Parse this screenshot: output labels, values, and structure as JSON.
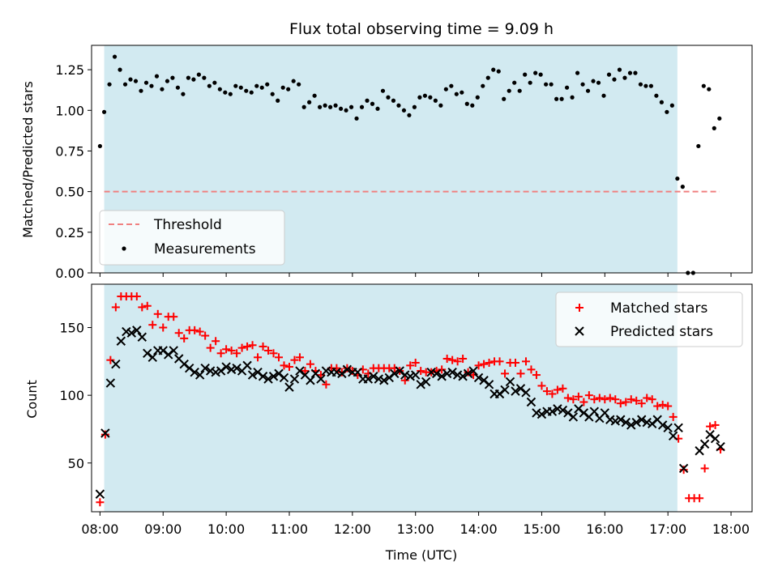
{
  "title": "Flux total observing time = 9.09 h",
  "colors": {
    "shade": "#add8e6",
    "threshold": "#f08080",
    "matched": "#ff0000",
    "predicted": "#000000",
    "measurements": "#000000"
  },
  "chart_data": [
    {
      "type": "scatter",
      "ylabel": "Matched/Predicted stars",
      "xlabel": "",
      "xlim": [
        "07:52",
        "18:20"
      ],
      "ylim": [
        0,
        1.4
      ],
      "yticks": [
        "0.00",
        "0.25",
        "0.50",
        "0.75",
        "1.00",
        "1.25"
      ],
      "shaded_interval": [
        "08:04",
        "17:09"
      ],
      "legend": {
        "location": "lower-left",
        "entries": [
          "Threshold",
          "Measurements"
        ]
      },
      "threshold": {
        "name": "Threshold",
        "y": 0.5,
        "x_range": [
          "08:04",
          "17:49"
        ]
      },
      "series": [
        {
          "name": "Measurements",
          "x": [
            "08:00",
            "08:04",
            "08:09",
            "08:14",
            "08:19",
            "08:24",
            "08:29",
            "08:34",
            "08:39",
            "08:44",
            "08:49",
            "08:54",
            "08:59",
            "09:04",
            "09:09",
            "09:14",
            "09:19",
            "09:24",
            "09:29",
            "09:34",
            "09:39",
            "09:44",
            "09:49",
            "09:54",
            "09:59",
            "10:04",
            "10:09",
            "10:14",
            "10:19",
            "10:24",
            "10:29",
            "10:34",
            "10:39",
            "10:44",
            "10:49",
            "10:54",
            "10:59",
            "11:04",
            "11:09",
            "11:14",
            "11:19",
            "11:24",
            "11:29",
            "11:34",
            "11:39",
            "11:44",
            "11:49",
            "11:54",
            "11:59",
            "12:04",
            "12:09",
            "12:14",
            "12:19",
            "12:24",
            "12:29",
            "12:34",
            "12:39",
            "12:44",
            "12:49",
            "12:54",
            "12:59",
            "13:04",
            "13:09",
            "13:14",
            "13:19",
            "13:24",
            "13:29",
            "13:34",
            "13:39",
            "13:44",
            "13:49",
            "13:54",
            "13:59",
            "14:04",
            "14:09",
            "14:14",
            "14:19",
            "14:24",
            "14:29",
            "14:34",
            "14:39",
            "14:44",
            "14:49",
            "14:54",
            "14:59",
            "15:04",
            "15:09",
            "15:14",
            "15:19",
            "15:24",
            "15:29",
            "15:34",
            "15:39",
            "15:44",
            "15:49",
            "15:54",
            "15:59",
            "16:04",
            "16:09",
            "16:14",
            "16:19",
            "16:24",
            "16:29",
            "16:34",
            "16:39",
            "16:44",
            "16:49",
            "16:54",
            "16:59",
            "17:04",
            "17:09",
            "17:14",
            "17:19",
            "17:24",
            "17:29",
            "17:34",
            "17:39",
            "17:44",
            "17:49"
          ],
          "y": [
            0.78,
            0.99,
            1.16,
            1.33,
            1.25,
            1.16,
            1.19,
            1.18,
            1.12,
            1.17,
            1.15,
            1.21,
            1.13,
            1.18,
            1.2,
            1.14,
            1.1,
            1.2,
            1.19,
            1.22,
            1.2,
            1.15,
            1.17,
            1.13,
            1.11,
            1.1,
            1.15,
            1.14,
            1.12,
            1.11,
            1.15,
            1.14,
            1.16,
            1.1,
            1.06,
            1.14,
            1.13,
            1.18,
            1.16,
            1.02,
            1.05,
            1.09,
            1.02,
            1.03,
            1.02,
            1.03,
            1.01,
            1.0,
            1.02,
            0.95,
            1.02,
            1.06,
            1.04,
            1.01,
            1.12,
            1.08,
            1.06,
            1.03,
            1.0,
            0.97,
            1.02,
            1.08,
            1.09,
            1.08,
            1.06,
            1.03,
            1.13,
            1.15,
            1.1,
            1.11,
            1.04,
            1.03,
            1.08,
            1.15,
            1.2,
            1.25,
            1.24,
            1.07,
            1.12,
            1.17,
            1.12,
            1.22,
            1.17,
            1.23,
            1.22,
            1.16,
            1.16,
            1.07,
            1.07,
            1.14,
            1.08,
            1.23,
            1.16,
            1.12,
            1.18,
            1.17,
            1.09,
            1.22,
            1.19,
            1.25,
            1.2,
            1.23,
            1.23,
            1.16,
            1.15,
            1.15,
            1.09,
            1.05,
            0.99,
            1.03,
            0.58,
            0.53,
            0.0,
            0.0,
            0.78,
            1.15,
            1.13,
            0.89,
            0.95
          ]
        }
      ]
    },
    {
      "type": "scatter",
      "xlabel": "Time (UTC)",
      "ylabel": "Count",
      "xlim": [
        "07:52",
        "18:20"
      ],
      "ylim": [
        14,
        182
      ],
      "yticks": [
        "50",
        "100",
        "150"
      ],
      "xticks": [
        "08:00",
        "09:00",
        "10:00",
        "11:00",
        "12:00",
        "13:00",
        "14:00",
        "15:00",
        "16:00",
        "17:00",
        "18:00"
      ],
      "shaded_interval": [
        "08:04",
        "17:09"
      ],
      "legend": {
        "location": "top-right",
        "entries": [
          "Matched stars",
          "Predicted stars"
        ]
      },
      "series": [
        {
          "name": "Matched stars",
          "marker": "+",
          "y": [
            21,
            71,
            126,
            165,
            173,
            173,
            173,
            173,
            165,
            166,
            152,
            160,
            150,
            158,
            158,
            146,
            142,
            148,
            148,
            147,
            144,
            135,
            140,
            131,
            134,
            133,
            131,
            135,
            136,
            137,
            128,
            136,
            133,
            131,
            128,
            122,
            121,
            126,
            128,
            118,
            123,
            118,
            115,
            108,
            120,
            120,
            117,
            120,
            118,
            115,
            119,
            116,
            120,
            120,
            120,
            120,
            120,
            118,
            111,
            122,
            124,
            118,
            117,
            117,
            118,
            119,
            127,
            126,
            125,
            127,
            117,
            115,
            122,
            123,
            124,
            125,
            125,
            116,
            124,
            124,
            116,
            125,
            119,
            115,
            107,
            103,
            101,
            104,
            105,
            98,
            97,
            99,
            95,
            100,
            97,
            98,
            97,
            98,
            97,
            94,
            95,
            97,
            96,
            94,
            98,
            97,
            92,
            93,
            92,
            84,
            68,
            45,
            24,
            24,
            24,
            46,
            77,
            78,
            60
          ],
          "x": [
            "08:00",
            "08:05",
            "08:10",
            "08:15",
            "08:20",
            "08:25",
            "08:30",
            "08:35",
            "08:40",
            "08:45",
            "08:50",
            "08:55",
            "09:00",
            "09:05",
            "09:10",
            "09:15",
            "09:20",
            "09:25",
            "09:30",
            "09:35",
            "09:40",
            "09:45",
            "09:50",
            "09:55",
            "10:00",
            "10:05",
            "10:10",
            "10:15",
            "10:20",
            "10:25",
            "10:30",
            "10:35",
            "10:40",
            "10:45",
            "10:50",
            "10:55",
            "11:00",
            "11:05",
            "11:10",
            "11:15",
            "11:20",
            "11:25",
            "11:30",
            "11:35",
            "11:40",
            "11:45",
            "11:50",
            "11:55",
            "12:00",
            "12:05",
            "12:10",
            "12:15",
            "12:20",
            "12:25",
            "12:30",
            "12:35",
            "12:40",
            "12:45",
            "12:50",
            "12:55",
            "13:00",
            "13:05",
            "13:10",
            "13:15",
            "13:20",
            "13:25",
            "13:30",
            "13:35",
            "13:40",
            "13:45",
            "13:50",
            "13:55",
            "14:00",
            "14:05",
            "14:10",
            "14:15",
            "14:20",
            "14:25",
            "14:30",
            "14:35",
            "14:40",
            "14:45",
            "14:50",
            "14:55",
            "15:00",
            "15:05",
            "15:10",
            "15:15",
            "15:20",
            "15:25",
            "15:30",
            "15:35",
            "15:40",
            "15:45",
            "15:50",
            "15:55",
            "16:00",
            "16:05",
            "16:10",
            "16:15",
            "16:20",
            "16:25",
            "16:30",
            "16:35",
            "16:40",
            "16:45",
            "16:50",
            "16:55",
            "17:00",
            "17:05",
            "17:10",
            "17:15",
            "17:20",
            "17:25",
            "17:30",
            "17:35",
            "17:40",
            "17:45",
            "17:50"
          ]
        },
        {
          "name": "Predicted stars",
          "marker": "x",
          "y": [
            27,
            72,
            109,
            123,
            140,
            147,
            146,
            148,
            143,
            131,
            128,
            133,
            133,
            130,
            133,
            127,
            123,
            120,
            117,
            115,
            120,
            118,
            117,
            118,
            121,
            119,
            120,
            118,
            122,
            115,
            117,
            114,
            112,
            114,
            116,
            113,
            106,
            112,
            118,
            115,
            111,
            116,
            112,
            118,
            117,
            117,
            116,
            119,
            117,
            117,
            112,
            112,
            114,
            112,
            111,
            113,
            116,
            118,
            115,
            114,
            115,
            108,
            110,
            117,
            116,
            114,
            116,
            117,
            115,
            114,
            116,
            118,
            113,
            111,
            108,
            101,
            101,
            104,
            110,
            103,
            105,
            102,
            95,
            87,
            86,
            88,
            88,
            90,
            89,
            87,
            84,
            90,
            87,
            84,
            88,
            83,
            87,
            82,
            81,
            82,
            80,
            78,
            80,
            82,
            80,
            79,
            82,
            78,
            76,
            70,
            76,
            46,
            null,
            null,
            59,
            64,
            71,
            68,
            62
          ],
          "x": [
            "08:00",
            "08:05",
            "08:10",
            "08:15",
            "08:20",
            "08:25",
            "08:30",
            "08:35",
            "08:40",
            "08:45",
            "08:50",
            "08:55",
            "09:00",
            "09:05",
            "09:10",
            "09:15",
            "09:20",
            "09:25",
            "09:30",
            "09:35",
            "09:40",
            "09:45",
            "09:50",
            "09:55",
            "10:00",
            "10:05",
            "10:10",
            "10:15",
            "10:20",
            "10:25",
            "10:30",
            "10:35",
            "10:40",
            "10:45",
            "10:50",
            "10:55",
            "11:00",
            "11:05",
            "11:10",
            "11:15",
            "11:20",
            "11:25",
            "11:30",
            "11:35",
            "11:40",
            "11:45",
            "11:50",
            "11:55",
            "12:00",
            "12:05",
            "12:10",
            "12:15",
            "12:20",
            "12:25",
            "12:30",
            "12:35",
            "12:40",
            "12:45",
            "12:50",
            "12:55",
            "13:00",
            "13:05",
            "13:10",
            "13:15",
            "13:20",
            "13:25",
            "13:30",
            "13:35",
            "13:40",
            "13:45",
            "13:50",
            "13:55",
            "14:00",
            "14:05",
            "14:10",
            "14:15",
            "14:20",
            "14:25",
            "14:30",
            "14:35",
            "14:40",
            "14:45",
            "14:50",
            "14:55",
            "15:00",
            "15:05",
            "15:10",
            "15:15",
            "15:20",
            "15:25",
            "15:30",
            "15:35",
            "15:40",
            "15:45",
            "15:50",
            "15:55",
            "16:00",
            "16:05",
            "16:10",
            "16:15",
            "16:20",
            "16:25",
            "16:30",
            "16:35",
            "16:40",
            "16:45",
            "16:50",
            "16:55",
            "17:00",
            "17:05",
            "17:10",
            "17:15",
            "17:20",
            "17:25",
            "17:30",
            "17:35",
            "17:40",
            "17:45",
            "17:50"
          ]
        }
      ]
    }
  ]
}
